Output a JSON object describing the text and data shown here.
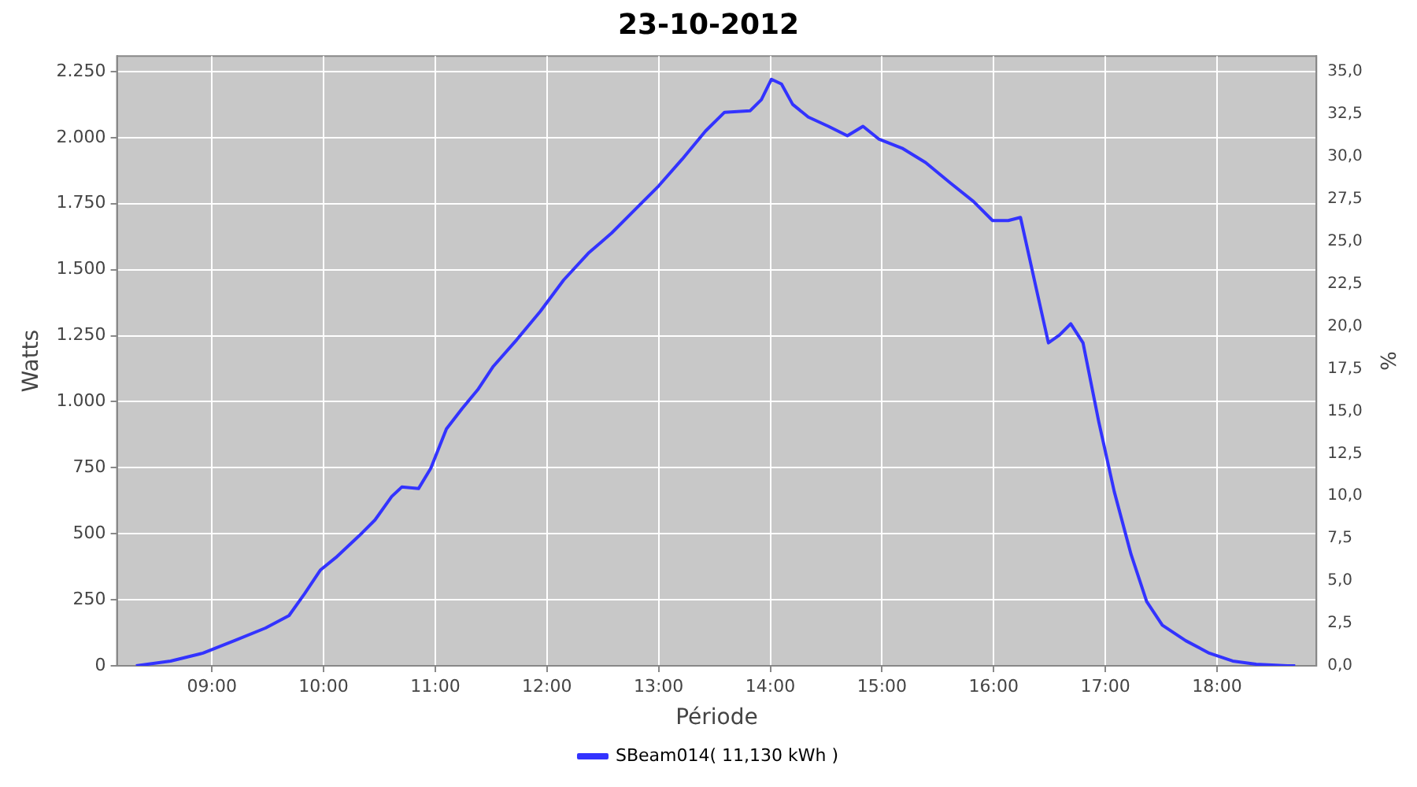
{
  "chart_data": {
    "type": "line",
    "title": "23-10-2012",
    "xlabel": "Période",
    "ylabel": "Watts",
    "y2label": "%",
    "xlim": [
      8.15,
      18.89
    ],
    "xticks": [
      {
        "value": 9,
        "label": "09:00"
      },
      {
        "value": 10,
        "label": "10:00"
      },
      {
        "value": 11,
        "label": "11:00"
      },
      {
        "value": 12,
        "label": "12:00"
      },
      {
        "value": 13,
        "label": "13:00"
      },
      {
        "value": 14,
        "label": "14:00"
      },
      {
        "value": 15,
        "label": "15:00"
      },
      {
        "value": 16,
        "label": "16:00"
      },
      {
        "value": 17,
        "label": "17:00"
      },
      {
        "value": 18,
        "label": "18:00"
      }
    ],
    "ylim": [
      0,
      2309
    ],
    "yticks": [
      0,
      250,
      500,
      750,
      {
        "value": 1000,
        "label": "1.000"
      },
      {
        "value": 1250,
        "label": "1.250"
      },
      {
        "value": 1500,
        "label": "1.500"
      },
      {
        "value": 1750,
        "label": "1.750"
      },
      {
        "value": 2000,
        "label": "2.000"
      },
      {
        "value": 2250,
        "label": "2.250"
      }
    ],
    "y2lim": [
      0,
      35.92
    ],
    "y2ticks": [
      {
        "value": 0,
        "label": "0,0"
      },
      {
        "value": 2.5,
        "label": "2,5"
      },
      {
        "value": 5,
        "label": "5,0"
      },
      {
        "value": 7.5,
        "label": "7,5"
      },
      {
        "value": 10,
        "label": "10,0"
      },
      {
        "value": 12.5,
        "label": "12,5"
      },
      {
        "value": 15,
        "label": "15,0"
      },
      {
        "value": 17.5,
        "label": "17,5"
      },
      {
        "value": 20,
        "label": "20,0"
      },
      {
        "value": 22.5,
        "label": "22,5"
      },
      {
        "value": 25,
        "label": "25,0"
      },
      {
        "value": 27.5,
        "label": "27,5"
      },
      {
        "value": 30,
        "label": "30,0"
      },
      {
        "value": 32.5,
        "label": "32,5"
      },
      {
        "value": 35,
        "label": "35,0"
      }
    ],
    "grid": true,
    "legend": "bottom",
    "marker": "none",
    "line_style": "solid",
    "x": [
      8.32,
      8.63,
      8.92,
      9.2,
      9.48,
      9.69,
      9.83,
      9.97,
      10.11,
      10.32,
      10.46,
      10.61,
      10.7,
      10.85,
      10.96,
      11.1,
      11.24,
      11.38,
      11.52,
      11.73,
      11.94,
      12.15,
      12.37,
      12.58,
      12.79,
      13.0,
      13.21,
      13.42,
      13.59,
      13.82,
      13.92,
      14.01,
      14.1,
      14.2,
      14.34,
      14.52,
      14.69,
      14.83,
      14.97,
      15.18,
      15.39,
      15.61,
      15.82,
      15.99,
      16.13,
      16.24,
      16.38,
      16.49,
      16.59,
      16.69,
      16.8,
      16.94,
      17.08,
      17.23,
      17.37,
      17.51,
      17.72,
      17.93,
      18.14,
      18.35,
      18.63,
      18.7
    ],
    "series": [
      {
        "name": "SBeam014( 11,130 kWh )",
        "color": "#3333ff",
        "values": [
          0,
          18,
          48,
          95,
          143,
          190,
          273,
          362,
          410,
          493,
          552,
          641,
          677,
          671,
          748,
          897,
          974,
          1045,
          1134,
          1235,
          1342,
          1461,
          1562,
          1639,
          1728,
          1817,
          1918,
          2025,
          2096,
          2102,
          2144,
          2221,
          2203,
          2126,
          2078,
          2043,
          2007,
          2043,
          1995,
          1960,
          1906,
          1829,
          1758,
          1686,
          1686,
          1698,
          1431,
          1223,
          1253,
          1295,
          1223,
          926,
          659,
          422,
          243,
          154,
          95,
          48,
          18,
          6,
          0,
          0
        ]
      }
    ]
  }
}
